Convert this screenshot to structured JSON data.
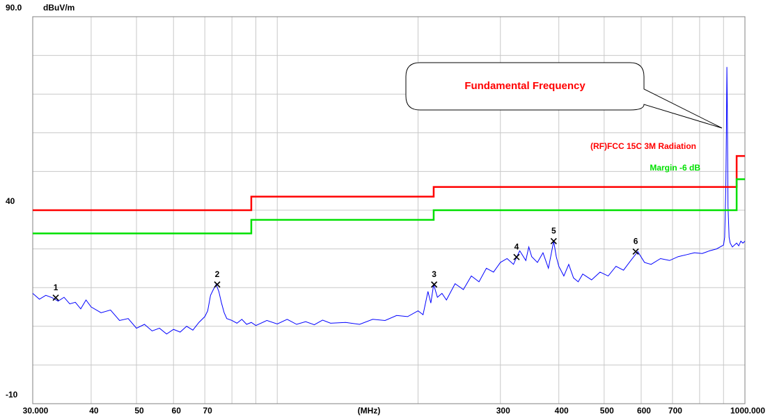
{
  "chart_data": {
    "type": "line",
    "y_unit": "dBuV/m",
    "x_label": "(MHz)",
    "annotation": "Fundamental Frequency",
    "xscale": "log",
    "grid": true,
    "xlim": [
      30,
      1000
    ],
    "ylim": [
      -10,
      90
    ],
    "xticks": [
      {
        "value": 30,
        "label": "30.000"
      },
      40,
      50,
      60,
      70,
      300,
      400,
      500,
      600,
      700,
      {
        "value": 1000,
        "label": "1000.000"
      }
    ],
    "xminor_ticks": [
      80,
      90,
      100,
      200,
      800,
      900
    ],
    "yticks": [
      {
        "value": -10,
        "label": "-10"
      },
      40,
      {
        "value": 90,
        "label": "90.0"
      }
    ],
    "yminor_ticks": [
      0,
      10,
      20,
      30,
      50,
      60,
      70,
      80
    ],
    "limits": [
      {
        "name": "(RF)FCC 15C 3M Radiation",
        "color": "#ff0000",
        "x": [
          30,
          88,
          88,
          216,
          216,
          960,
          960,
          1000
        ],
        "values": [
          40,
          40,
          43.5,
          43.5,
          46,
          46,
          54,
          54
        ]
      },
      {
        "name": "Margin -6 dB",
        "color": "#00e000",
        "x": [
          30,
          88,
          88,
          216,
          216,
          960,
          960,
          1000
        ],
        "values": [
          34,
          34,
          37.5,
          37.5,
          40,
          40,
          48,
          48
        ]
      }
    ],
    "trace": {
      "color": "#0000ff",
      "x": [
        30,
        31,
        32,
        33,
        34,
        35,
        36,
        37,
        38,
        39,
        40,
        42,
        44,
        46,
        48,
        50,
        52,
        54,
        56,
        58,
        60,
        62,
        64,
        66,
        68,
        70,
        71,
        72,
        73,
        74,
        75,
        76,
        77,
        78,
        80,
        82,
        84,
        86,
        88,
        90,
        95,
        100,
        105,
        110,
        115,
        120,
        125,
        130,
        140,
        150,
        160,
        170,
        180,
        190,
        200,
        205,
        210,
        213,
        216,
        220,
        225,
        230,
        240,
        250,
        260,
        270,
        280,
        290,
        300,
        310,
        320,
        325,
        330,
        340,
        345,
        350,
        360,
        370,
        380,
        390,
        395,
        400,
        410,
        420,
        430,
        440,
        450,
        470,
        490,
        510,
        530,
        550,
        570,
        590,
        610,
        630,
        660,
        690,
        720,
        750,
        780,
        810,
        840,
        870,
        900,
        905,
        910,
        913,
        915,
        917,
        920,
        925,
        930,
        940,
        950,
        960,
        970,
        980,
        990,
        1000
      ],
      "values": [
        18.5,
        17,
        18,
        17.4,
        16.5,
        17.5,
        15.8,
        16.2,
        14.5,
        16.8,
        15,
        13.5,
        14.2,
        11.5,
        12,
        9.5,
        10.5,
        8.8,
        9.5,
        8,
        9.2,
        8.5,
        10,
        9,
        11,
        12.5,
        14,
        18,
        19.5,
        20.8,
        19,
        16,
        13.5,
        12,
        11.5,
        10.8,
        11.8,
        10.5,
        11,
        10.2,
        11.5,
        10.6,
        11.8,
        10.5,
        11.2,
        10.4,
        11.6,
        10.8,
        11,
        10.5,
        11.8,
        11.5,
        12.8,
        12.5,
        14,
        13,
        19,
        16,
        20.8,
        17.5,
        18.5,
        16.8,
        21,
        19.5,
        23,
        21.5,
        25,
        24,
        26.5,
        27.5,
        26,
        27.9,
        29.5,
        27,
        30.5,
        28,
        26.5,
        29,
        25,
        32,
        28,
        25.5,
        23,
        26,
        22.5,
        21.5,
        23.5,
        22,
        24,
        23,
        25.5,
        24.5,
        27,
        29.3,
        26.5,
        26,
        27.5,
        27,
        28,
        28.5,
        29,
        28.8,
        29.5,
        30,
        31,
        33,
        45,
        62,
        77,
        66,
        41,
        33,
        31.5,
        30.5,
        31,
        31.5,
        30.8,
        32,
        31.5,
        32
      ]
    },
    "markers": [
      {
        "name": "1",
        "x": 33.6,
        "value": 17.4
      },
      {
        "name": "2",
        "x": 74.4,
        "value": 20.8
      },
      {
        "name": "3",
        "x": 216.5,
        "value": 20.8
      },
      {
        "name": "4",
        "x": 324.8,
        "value": 27.9
      },
      {
        "name": "5",
        "x": 390,
        "value": 32.0
      },
      {
        "name": "6",
        "x": 584,
        "value": 29.3
      }
    ]
  }
}
